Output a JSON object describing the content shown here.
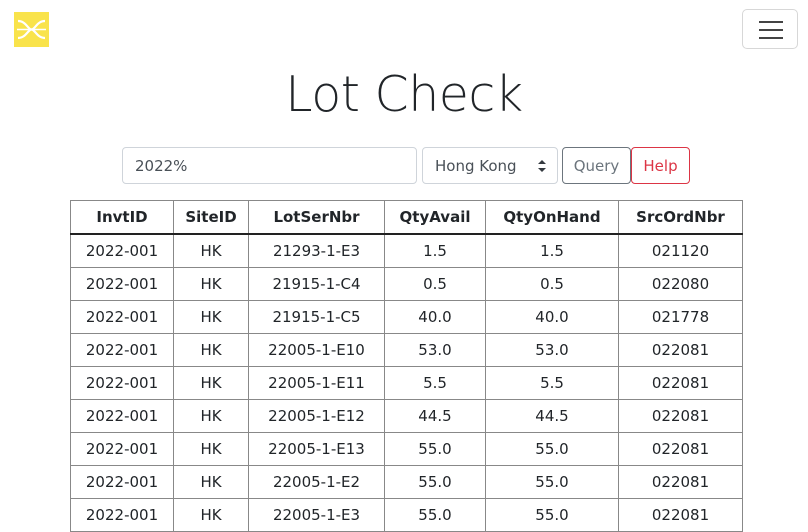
{
  "app": {
    "logo_icon": "brand-logo-icon",
    "menu_icon": "hamburger-menu-icon",
    "title": "Lot Check",
    "accent_color": "#f9e34b"
  },
  "search": {
    "value": "2022%",
    "placeholder": ""
  },
  "site_select": {
    "selected": "Hong Kong"
  },
  "buttons": {
    "query_label": "Query",
    "help_label": "Help"
  },
  "table": {
    "columns": [
      "InvtID",
      "SiteID",
      "LotSerNbr",
      "QtyAvail",
      "QtyOnHand",
      "SrcOrdNbr"
    ],
    "rows": [
      [
        "2022-001",
        "HK",
        "21293-1-E3",
        "1.5",
        "1.5",
        "021120"
      ],
      [
        "2022-001",
        "HK",
        "21915-1-C4",
        "0.5",
        "0.5",
        "022080"
      ],
      [
        "2022-001",
        "HK",
        "21915-1-C5",
        "40.0",
        "40.0",
        "021778"
      ],
      [
        "2022-001",
        "HK",
        "22005-1-E10",
        "53.0",
        "53.0",
        "022081"
      ],
      [
        "2022-001",
        "HK",
        "22005-1-E11",
        "5.5",
        "5.5",
        "022081"
      ],
      [
        "2022-001",
        "HK",
        "22005-1-E12",
        "44.5",
        "44.5",
        "022081"
      ],
      [
        "2022-001",
        "HK",
        "22005-1-E13",
        "55.0",
        "55.0",
        "022081"
      ],
      [
        "2022-001",
        "HK",
        "22005-1-E2",
        "55.0",
        "55.0",
        "022081"
      ],
      [
        "2022-001",
        "HK",
        "22005-1-E3",
        "55.0",
        "55.0",
        "022081"
      ]
    ]
  }
}
